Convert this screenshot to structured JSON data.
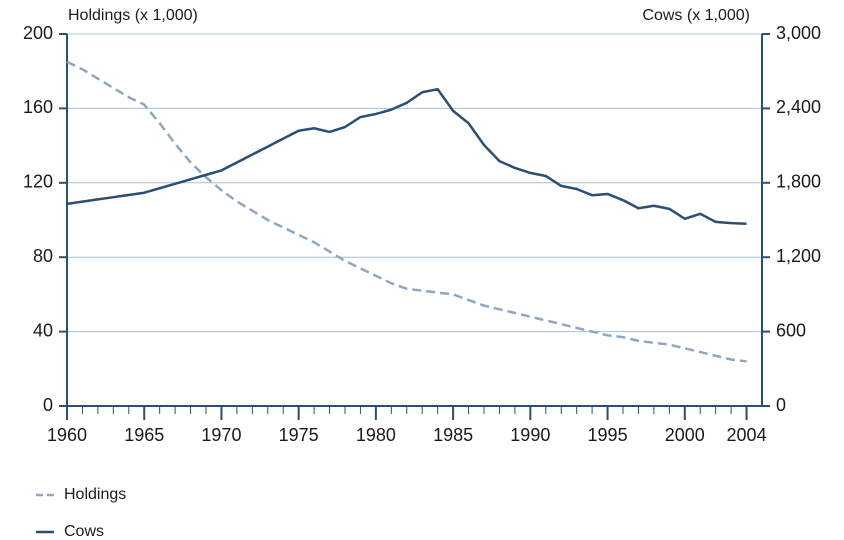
{
  "chart_data": {
    "type": "line",
    "y_label": "Holdings (x 1,000)",
    "y2_label": "Cows (x 1,000)",
    "x": [
      1960,
      1961,
      1962,
      1963,
      1964,
      1965,
      1966,
      1967,
      1968,
      1969,
      1970,
      1971,
      1972,
      1973,
      1974,
      1975,
      1976,
      1977,
      1978,
      1979,
      1980,
      1981,
      1982,
      1983,
      1984,
      1985,
      1986,
      1987,
      1988,
      1989,
      1990,
      1991,
      1992,
      1993,
      1994,
      1995,
      1996,
      1997,
      1998,
      1999,
      2000,
      2001,
      2002,
      2003,
      2004
    ],
    "series": [
      {
        "name": "Holdings",
        "color": "#8ea7bf",
        "dashed": true,
        "values": [
          185,
          181,
          176,
          171,
          166,
          162,
          152,
          141,
          131,
          123,
          116,
          110,
          105,
          100,
          96,
          92,
          88,
          83,
          78,
          74,
          70,
          66,
          63,
          62,
          61,
          60,
          57,
          54,
          52,
          50,
          48,
          46,
          44,
          42,
          40,
          38,
          37,
          35,
          34,
          33,
          31,
          29,
          27,
          25,
          24
        ]
      },
      {
        "name": "Cows",
        "color": "#2b4f72",
        "axis": "y2",
        "values": [
          1630,
          1648,
          1666,
          1684,
          1702,
          1720,
          1756,
          1792,
          1828,
          1864,
          1900,
          1964,
          2028,
          2092,
          2156,
          2220,
          2240,
          2210,
          2250,
          2330,
          2355,
          2390,
          2445,
          2530,
          2555,
          2380,
          2280,
          2105,
          1975,
          1920,
          1880,
          1855,
          1775,
          1750,
          1700,
          1710,
          1660,
          1595,
          1615,
          1590,
          1510,
          1550,
          1485,
          1475,
          1470
        ]
      }
    ],
    "xlim": [
      1960,
      2005
    ],
    "xticks": [
      1960,
      1965,
      1970,
      1975,
      1980,
      1985,
      1990,
      1995,
      2000,
      2004
    ],
    "ylim": [
      0,
      200
    ],
    "yticks": [
      0,
      40,
      80,
      120,
      160,
      200
    ],
    "y2lim": [
      0,
      3000
    ],
    "y2ticks": [
      0,
      600,
      {
        "value": 1200,
        "label": "1,200"
      },
      {
        "value": 1800,
        "label": "1,800"
      },
      {
        "value": 2400,
        "label": "2,400"
      },
      {
        "value": 3000,
        "label": "3,000"
      }
    ],
    "grid": true
  }
}
